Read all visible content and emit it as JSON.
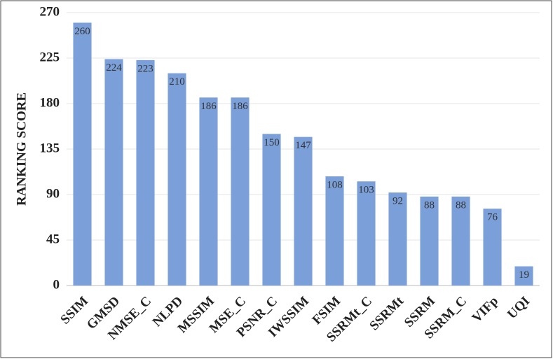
{
  "chart_data": {
    "type": "bar",
    "y_label": "RANKING SCORE",
    "categories": [
      "SSIM",
      "GMSD",
      "NMSE_C",
      "NLPD",
      "MSSIM",
      "MSE_C",
      "PSNR_C",
      "IWSSIM",
      "FSIM",
      "SSRMt_C",
      "SSRMt",
      "SSRM",
      "SSRM_C",
      "VIFp",
      "UQI"
    ],
    "values": [
      260,
      224,
      223,
      210,
      186,
      186,
      150,
      147,
      108,
      103,
      92,
      88,
      88,
      76,
      19
    ],
    "color": "#7b9fd9",
    "ylim": [
      0,
      270
    ],
    "yticks": [
      0,
      45,
      90,
      135,
      180,
      225,
      270
    ],
    "grid": true
  }
}
